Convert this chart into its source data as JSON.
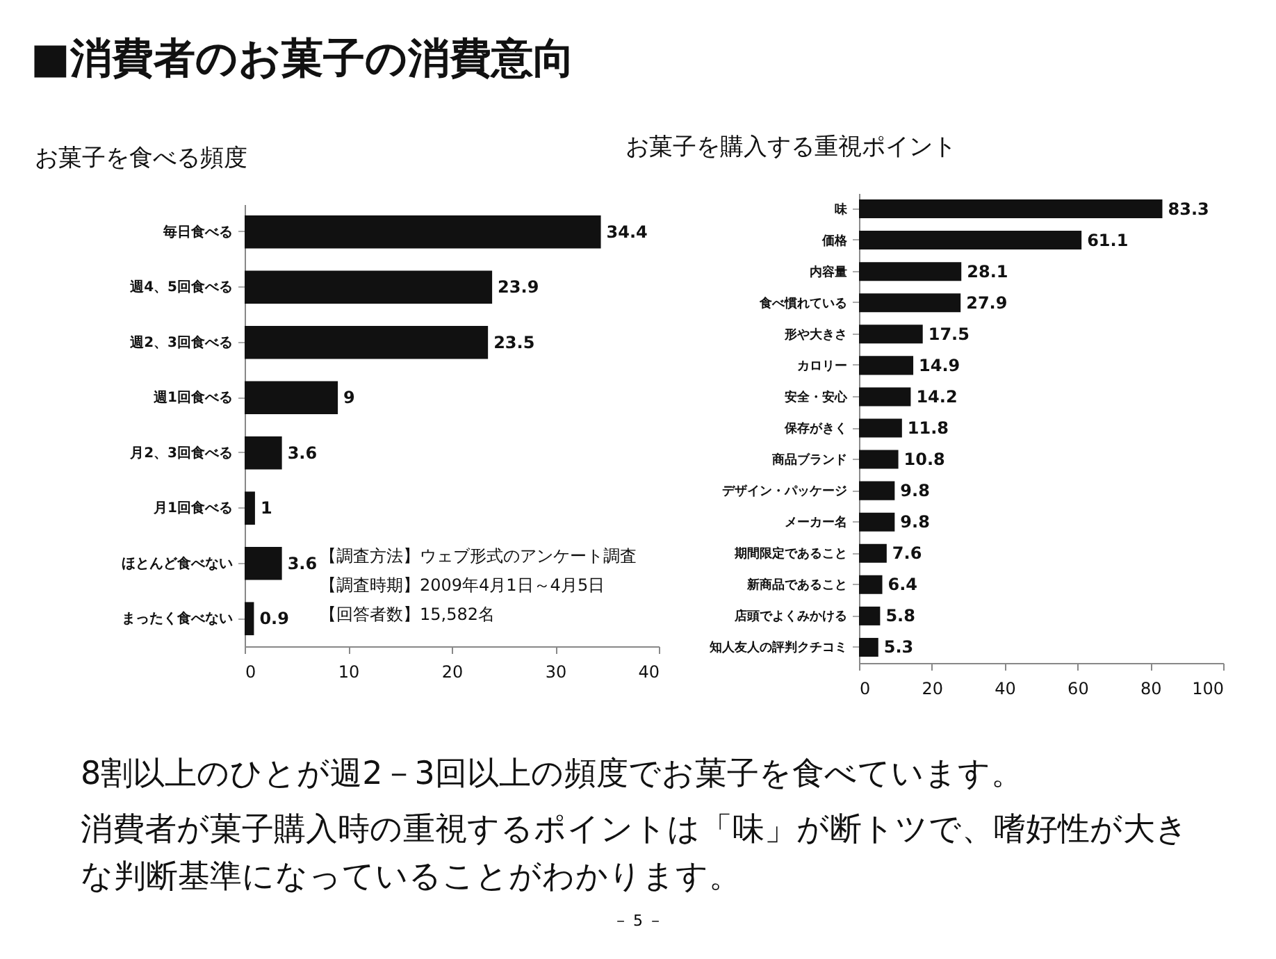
{
  "chart_data": [
    {
      "type": "other",
      "title": "■消費者のお菓子の消費意向"
    },
    {
      "type": "bar",
      "orientation": "horizontal",
      "title": "お菓子を食べる頻度",
      "categories": [
        "毎日食べる",
        "週4、5回食べる",
        "週2、3回食べる",
        "週1回食べる",
        "月2、3回食べる",
        "月1回食べる",
        "ほとんど食べない",
        "まったく食べない"
      ],
      "values": [
        34.4,
        23.9,
        23.5,
        9,
        3.6,
        1,
        3.6,
        0.9
      ],
      "color": "#111111",
      "data_labels": true,
      "xlim": [
        0,
        40
      ],
      "xticks": [
        0,
        10,
        20,
        30,
        40
      ],
      "grid": false,
      "annotations": [
        "【調査方法】ウェブ形式のアンケート調査",
        "【調査時期】2009年4月1日～4月5日",
        "【回答者数】15,582名"
      ]
    },
    {
      "type": "bar",
      "orientation": "horizontal",
      "title": "お菓子を購入する重視ポイント",
      "categories": [
        "味",
        "価格",
        "内容量",
        "食べ慣れている",
        "形や大きさ",
        "カロリー",
        "安全・安心",
        "保存がきく",
        "商品ブランド",
        "デザイン・パッケージ",
        "メーカー名",
        "期間限定であること",
        "新商品であること",
        "店頭でよくみかける",
        "知人友人の評判クチコミ"
      ],
      "values": [
        83.3,
        61.1,
        28.1,
        27.9,
        17.5,
        14.9,
        14.2,
        11.8,
        10.8,
        9.8,
        9.8,
        7.6,
        6.4,
        5.8,
        5.3
      ],
      "color": "#111111",
      "data_labels": true,
      "xlim": [
        0,
        100
      ],
      "xticks": [
        0,
        20,
        40,
        60,
        80,
        100
      ],
      "grid": false
    },
    {
      "type": "other",
      "annotations": [
        "8割以上のひとが週2－3回以上の頻度でお菓子を食べています。",
        "消費者が菓子購入時の重視するポイントは「味」が断トツで、嗜好性が大きな判断基準になっていることがわかります。",
        "－ 5 －"
      ]
    }
  ]
}
